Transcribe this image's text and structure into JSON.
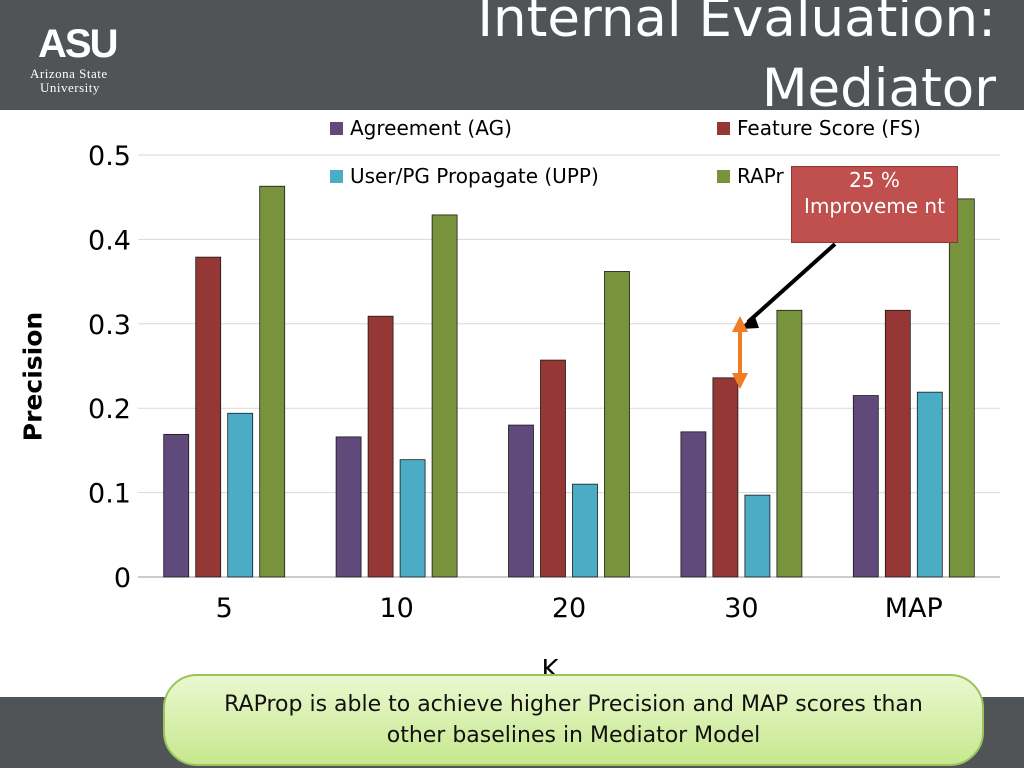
{
  "header": {
    "title": "Internal Evaluation: Mediator",
    "logo": {
      "mark": "ASU",
      "line1": "Arizona State",
      "line2": "University"
    }
  },
  "callout": {
    "text": "25 % Improveme nt",
    "color": "#c0504d"
  },
  "note": {
    "text": "RAProp is able to achieve higher Precision and MAP scores than other baselines in Mediator Model"
  },
  "chart_data": {
    "type": "bar",
    "title": "",
    "xlabel": "K",
    "ylabel": "Precision",
    "categories": [
      "5",
      "10",
      "20",
      "30",
      "MAP"
    ],
    "ylim": [
      0,
      0.5
    ],
    "yticks": [
      "0",
      "0.1",
      "0.2",
      "0.3",
      "0.4",
      "0.5"
    ],
    "grid": true,
    "legend_position": "top",
    "series": [
      {
        "name": "Agreement (AG)",
        "color": "#604a7b",
        "values": [
          0.169,
          0.166,
          0.18,
          0.172,
          0.215
        ]
      },
      {
        "name": "Feature Score (FS)",
        "color": "#953735",
        "values": [
          0.379,
          0.309,
          0.257,
          0.236,
          0.316
        ]
      },
      {
        "name": "User/PG Propagate (UPP)",
        "color": "#4bacc6",
        "values": [
          0.194,
          0.139,
          0.11,
          0.097,
          0.219
        ]
      },
      {
        "name": "RAPr",
        "color": "#77933c",
        "values": [
          0.463,
          0.429,
          0.362,
          0.316,
          0.448
        ]
      }
    ]
  }
}
